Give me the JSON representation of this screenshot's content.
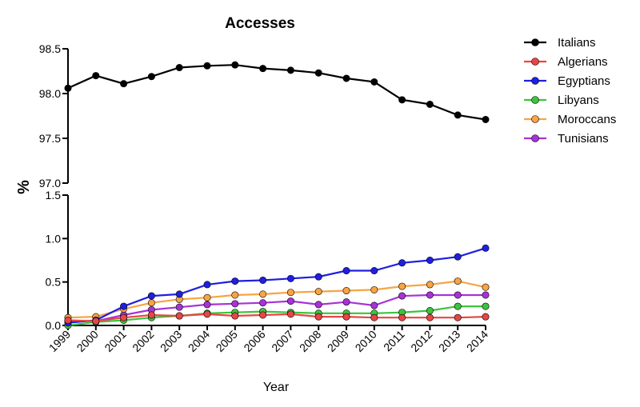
{
  "chart_data": {
    "type": "line",
    "title": "Accesses",
    "xlabel": "Year",
    "ylabel": "%",
    "grid": false,
    "legend_position": "top-right",
    "x": [
      1999,
      2000,
      2001,
      2002,
      2003,
      2004,
      2005,
      2006,
      2007,
      2008,
      2009,
      2010,
      2011,
      2012,
      2013,
      2014
    ],
    "x_tick_labels": [
      "1999",
      "2000",
      "2001",
      "2002",
      "2003",
      "2004",
      "2005",
      "2006",
      "2007",
      "2008",
      "2009",
      "2010",
      "2011",
      "2012",
      "2013",
      "2014"
    ],
    "y_axis_break": true,
    "upper_ylim": [
      97.0,
      98.5
    ],
    "upper_ticks": [
      97.0,
      97.5,
      98.0,
      98.5
    ],
    "upper_tick_labels": [
      "97.0",
      "97.5",
      "98.0",
      "98.5"
    ],
    "lower_ylim": [
      0.0,
      1.5
    ],
    "lower_ticks": [
      0.0,
      0.5,
      1.0,
      1.5
    ],
    "lower_tick_labels": [
      "0.0",
      "0.5",
      "1.0",
      "1.5"
    ],
    "series": [
      {
        "name": "Italians",
        "color": "#000000",
        "panel": "upper",
        "values": [
          98.06,
          98.2,
          98.11,
          98.19,
          98.29,
          98.31,
          98.32,
          98.28,
          98.26,
          98.23,
          98.17,
          98.13,
          97.93,
          97.88,
          97.76,
          97.71
        ]
      },
      {
        "name": "Algerians",
        "color": "#e84545",
        "panel": "lower",
        "values": [
          0.06,
          0.05,
          0.09,
          0.12,
          0.11,
          0.13,
          0.11,
          0.12,
          0.13,
          0.1,
          0.1,
          0.09,
          0.09,
          0.09,
          0.09,
          0.1
        ]
      },
      {
        "name": "Egyptians",
        "color": "#1f1fe0",
        "panel": "lower",
        "values": [
          0.03,
          0.06,
          0.22,
          0.34,
          0.36,
          0.47,
          0.51,
          0.52,
          0.54,
          0.56,
          0.63,
          0.63,
          0.72,
          0.75,
          0.79,
          0.89
        ]
      },
      {
        "name": "Libyans",
        "color": "#3cc43c",
        "panel": "lower",
        "values": [
          0.0,
          0.04,
          0.06,
          0.09,
          0.11,
          0.14,
          0.15,
          0.16,
          0.15,
          0.14,
          0.14,
          0.14,
          0.15,
          0.17,
          0.22,
          0.22
        ]
      },
      {
        "name": "Moroccans",
        "color": "#f7a444",
        "panel": "lower",
        "values": [
          0.09,
          0.1,
          0.19,
          0.26,
          0.3,
          0.32,
          0.35,
          0.36,
          0.38,
          0.39,
          0.4,
          0.41,
          0.45,
          0.47,
          0.51,
          0.44
        ]
      },
      {
        "name": "Tunisians",
        "color": "#a832d6",
        "panel": "lower",
        "values": [
          0.05,
          0.05,
          0.12,
          0.18,
          0.21,
          0.24,
          0.25,
          0.26,
          0.28,
          0.24,
          0.27,
          0.23,
          0.34,
          0.35,
          0.35,
          0.35
        ]
      }
    ]
  }
}
